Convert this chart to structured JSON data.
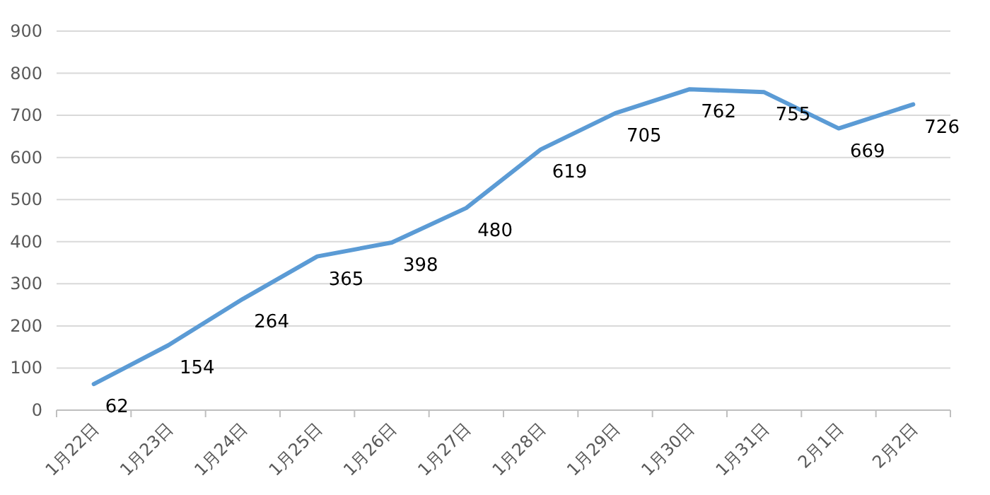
{
  "chart_data": {
    "type": "line",
    "categories": [
      "1月22日",
      "1月23日",
      "1月24日",
      "1月25日",
      "1月26日",
      "1月27日",
      "1月28日",
      "1月29日",
      "1月30日",
      "1月31日",
      "2月1日",
      "2月2日"
    ],
    "series": [
      {
        "color": "#5b9bd5",
        "values": [
          62,
          154,
          264,
          365,
          398,
          480,
          619,
          705,
          762,
          755,
          669,
          726
        ]
      }
    ],
    "ylim": [
      0,
      900
    ],
    "yticks": [
      0,
      100,
      200,
      300,
      400,
      500,
      600,
      700,
      800,
      900
    ],
    "grid": "y",
    "data_labels": true,
    "marker": "none",
    "line_style": "solid"
  }
}
